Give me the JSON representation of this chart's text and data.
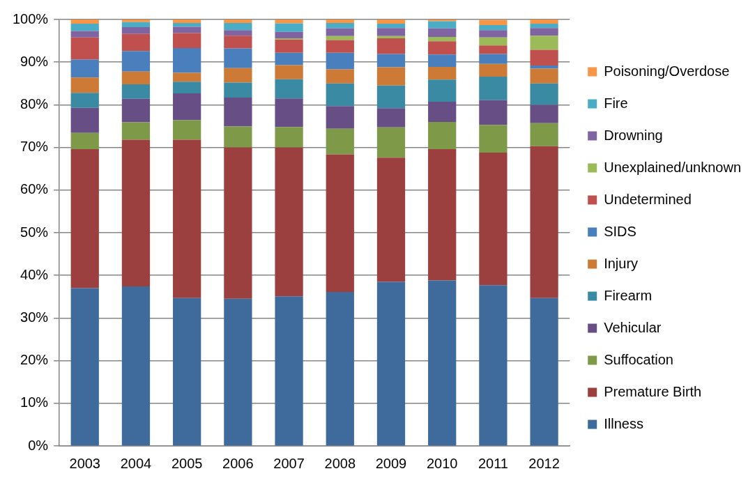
{
  "chart_data": {
    "type": "bar",
    "stacked": true,
    "categories": [
      "2003",
      "2004",
      "2005",
      "2006",
      "2007",
      "2008",
      "2009",
      "2010",
      "2011",
      "2012"
    ],
    "series": [
      {
        "name": "Illness",
        "color": "#3f6a9c",
        "values": [
          37,
          37.4,
          34.7,
          34.5,
          35.1,
          36.1,
          38.5,
          38.8,
          37.7,
          34.7
        ]
      },
      {
        "name": "Premature Birth",
        "color": "#9c403f",
        "values": [
          32.6,
          34.4,
          37.1,
          35.5,
          34.9,
          32.3,
          29.1,
          30.8,
          31.1,
          35.6
        ]
      },
      {
        "name": "Suffocation",
        "color": "#7e9a48",
        "values": [
          3.8,
          4.1,
          4.6,
          4.9,
          4.8,
          6.0,
          7.1,
          6.4,
          6.5,
          5.4
        ]
      },
      {
        "name": "Vehicular",
        "color": "#674f86",
        "values": [
          5.9,
          5.5,
          6.3,
          6.8,
          6.7,
          5.3,
          4.5,
          4.7,
          5.8,
          4.3
        ]
      },
      {
        "name": "Firearm",
        "color": "#3a8aa3",
        "values": [
          3.5,
          3.4,
          2.7,
          3.5,
          4.5,
          5.3,
          5.3,
          5.2,
          5.5,
          5.0
        ]
      },
      {
        "name": "Injury",
        "color": "#cc7a36",
        "values": [
          3.6,
          3.0,
          2.1,
          3.4,
          3.3,
          3.3,
          4.3,
          3.0,
          3.0,
          3.5
        ]
      },
      {
        "name": "SIDS",
        "color": "#4a7fbd",
        "values": [
          4.2,
          4.8,
          5.8,
          4.6,
          2.9,
          3.9,
          3.1,
          2.9,
          2.3,
          0.7
        ]
      },
      {
        "name": "Undetermined",
        "color": "#c0504d",
        "values": [
          5.2,
          4.0,
          3.5,
          3.0,
          3.1,
          3.0,
          3.7,
          3.1,
          2.0,
          3.7
        ]
      },
      {
        "name": "Unexplained/unknown",
        "color": "#9bbb59",
        "values": [
          0,
          0,
          0,
          0,
          0.3,
          0.9,
          0.5,
          1.0,
          1.9,
          3.3
        ]
      },
      {
        "name": "Drowning",
        "color": "#8064a2",
        "values": [
          1.5,
          1.6,
          1.5,
          1.3,
          1.5,
          1.8,
          1.9,
          2.0,
          1.7,
          1.8
        ]
      },
      {
        "name": "Fire",
        "color": "#4bacc6",
        "values": [
          1.7,
          1.2,
          0.9,
          1.7,
          2.0,
          1.3,
          1.0,
          1.7,
          1.2,
          1.0
        ]
      },
      {
        "name": "Poisoning/Overdose",
        "color": "#f79646",
        "values": [
          1.0,
          0.6,
          0.8,
          0.8,
          0.9,
          0.8,
          1.0,
          0.7,
          1.2,
          1.0
        ]
      }
    ],
    "ylim": [
      0,
      100
    ],
    "yticks": [
      {
        "value": 0,
        "label": "0%"
      },
      {
        "value": 10,
        "label": "10%"
      },
      {
        "value": 20,
        "label": "20%"
      },
      {
        "value": 30,
        "label": "30%"
      },
      {
        "value": 40,
        "label": "40%"
      },
      {
        "value": 50,
        "label": "50%"
      },
      {
        "value": 60,
        "label": "60%"
      },
      {
        "value": 70,
        "label": "70%"
      },
      {
        "value": 80,
        "label": "80%"
      },
      {
        "value": 90,
        "label": "90%"
      },
      {
        "value": 100,
        "label": "100%"
      }
    ],
    "grid": "y",
    "legend": "right"
  }
}
